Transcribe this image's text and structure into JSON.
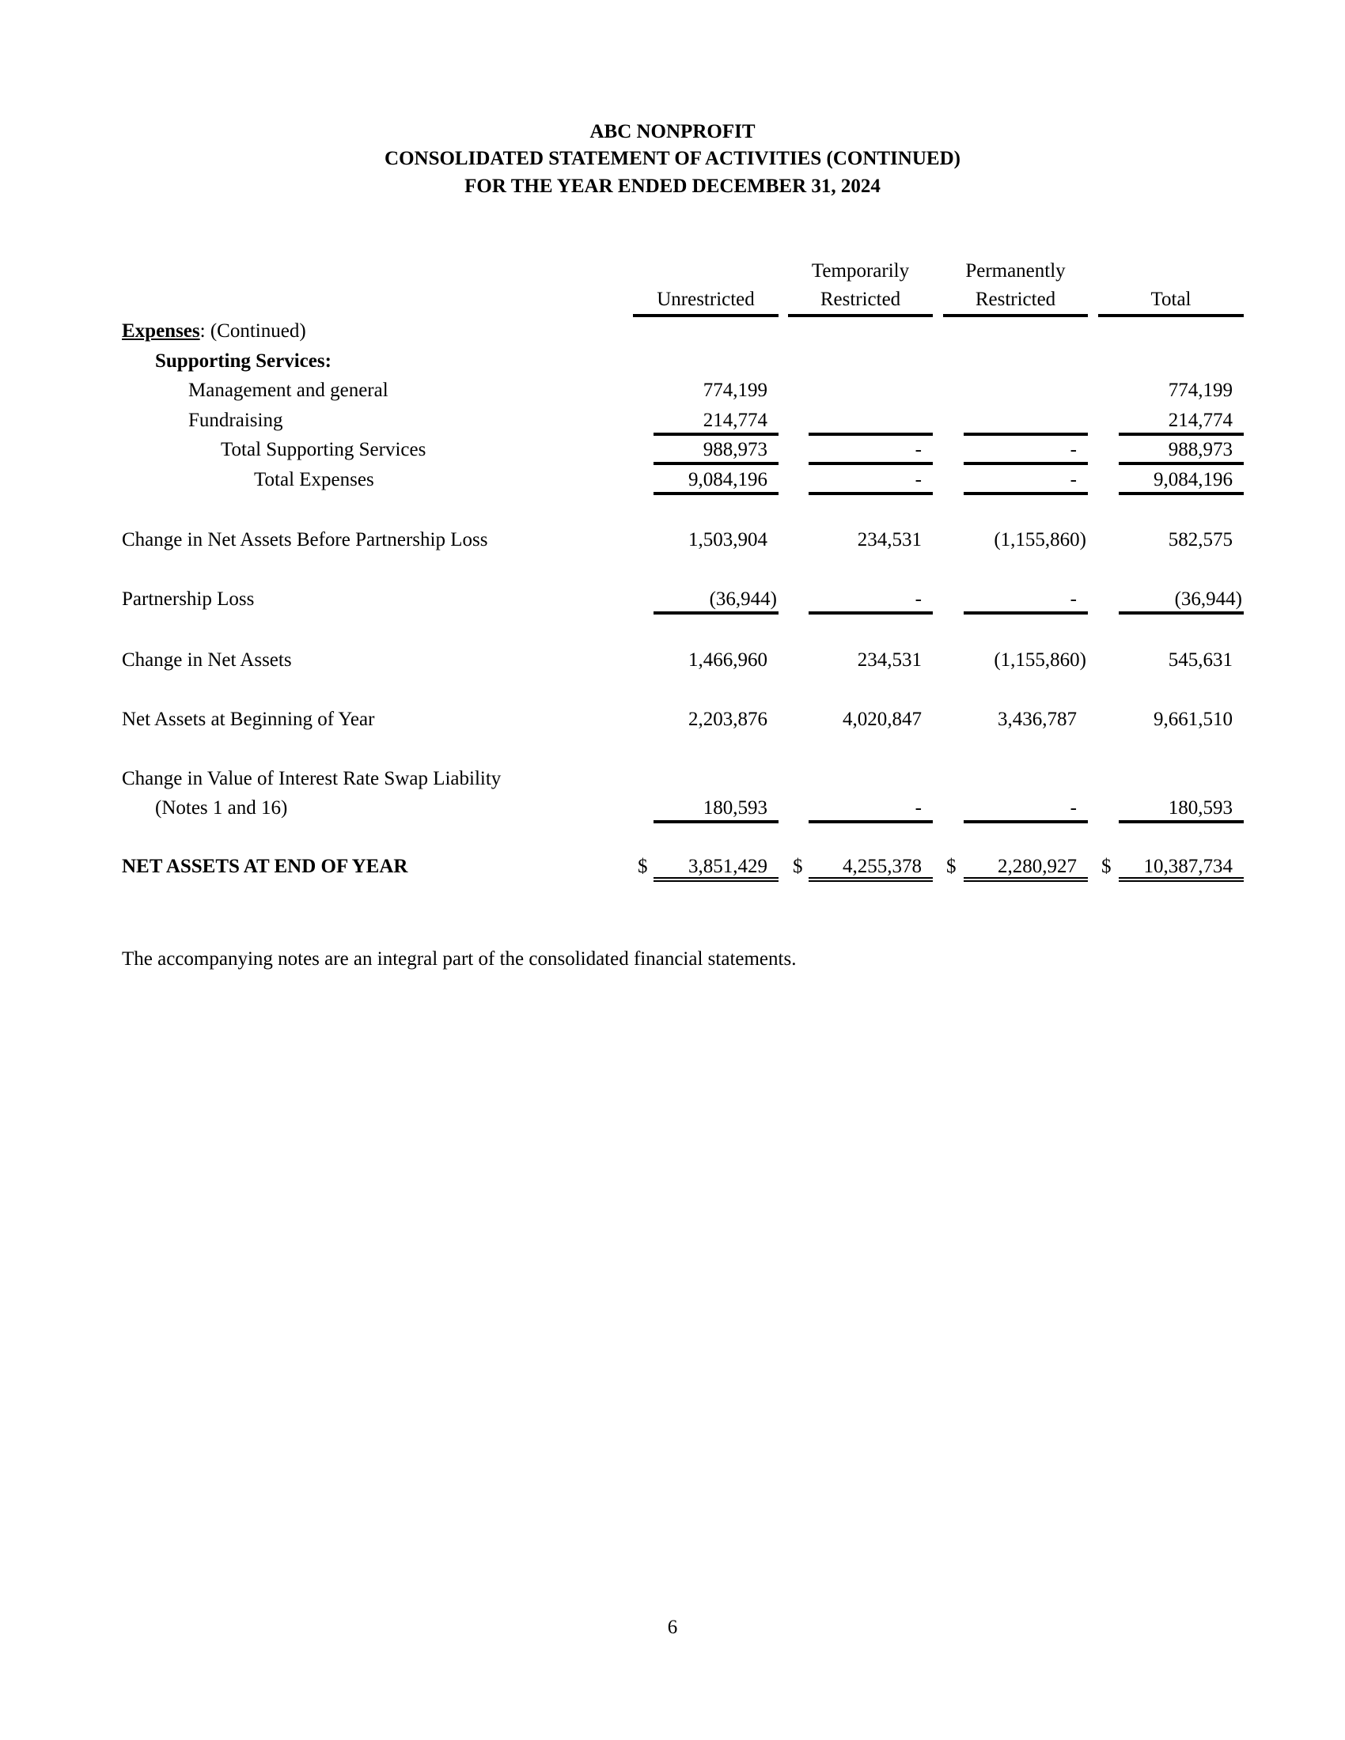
{
  "header": {
    "organization": "ABC NONPROFIT",
    "statement": "CONSOLIDATED STATEMENT OF ACTIVITIES (CONTINUED)",
    "period": "FOR THE YEAR ENDED DECEMBER 31, 2024"
  },
  "columns": [
    {
      "line1": "",
      "line2": "Unrestricted"
    },
    {
      "line1": "Temporarily",
      "line2": "Restricted"
    },
    {
      "line1": "Permanently",
      "line2": "Restricted"
    },
    {
      "line1": "",
      "line2": "Total"
    }
  ],
  "section": {
    "heading": "Expenses",
    "suffix": ": (Continued)",
    "subheading": "Supporting Services:"
  },
  "rows": [
    {
      "label": "Management and general",
      "values": [
        "774,199",
        "",
        "",
        "774,199"
      ]
    },
    {
      "label": "Fundraising",
      "values": [
        "214,774",
        "",
        "",
        "214,774"
      ]
    },
    {
      "label": "Total Supporting Services",
      "values": [
        "988,973",
        "-",
        "-",
        "988,973"
      ]
    },
    {
      "label": "Total Expenses",
      "values": [
        "9,084,196",
        "-",
        "-",
        "9,084,196"
      ]
    },
    {
      "label": "Change in Net Assets Before Partnership Loss",
      "values": [
        "1,503,904",
        "234,531",
        "(1,155,860)",
        "582,575"
      ]
    },
    {
      "label": "Partnership Loss",
      "values": [
        "(36,944)",
        "-",
        "-",
        "(36,944)"
      ]
    },
    {
      "label": "Change in Net Assets",
      "values": [
        "1,466,960",
        "234,531",
        "(1,155,860)",
        "545,631"
      ]
    },
    {
      "label": "Net Assets at Beginning of Year",
      "values": [
        "2,203,876",
        "4,020,847",
        "3,436,787",
        "9,661,510"
      ]
    },
    {
      "label": "Change in Value of Interest Rate Swap Liability",
      "label2": "(Notes 1 and 16)",
      "values": [
        "180,593",
        "-",
        "-",
        "180,593"
      ]
    },
    {
      "label": "NET ASSETS AT END OF YEAR",
      "currency": "$",
      "values": [
        "3,851,429",
        "4,255,378",
        "2,280,927",
        "10,387,734"
      ]
    }
  ],
  "footnote": "The accompanying notes are an integral part of the consolidated financial statements.",
  "page_number": "6"
}
